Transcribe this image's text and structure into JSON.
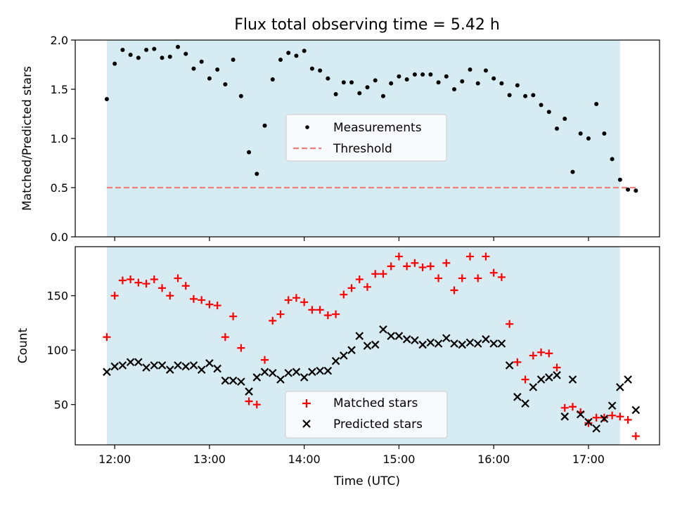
{
  "chart_data": [
    {
      "type": "scatter",
      "title": "Flux total observing time = 5.42 h",
      "xlabel": "",
      "ylabel": "Matched/Predicted stars",
      "ylim": [
        0.0,
        2.0
      ],
      "y_ticks": [
        0.0,
        0.5,
        1.0,
        1.5,
        2.0
      ],
      "y_tick_labels": [
        "0.0",
        "0.5",
        "1.0",
        "1.5",
        "2.0"
      ],
      "observing_window": {
        "start": "11:55",
        "end": "17:20",
        "color": "#add8e6"
      },
      "threshold": {
        "name": "Threshold",
        "value": 0.5,
        "color": "#f08080"
      },
      "legend_position": "center",
      "legend": [
        "Measurements",
        "Threshold"
      ],
      "series": [
        {
          "name": "Measurements",
          "marker": "dot",
          "color": "#000000",
          "points": [
            [
              "11:55",
              1.4
            ],
            [
              "12:00",
              1.76
            ],
            [
              "12:05",
              1.9
            ],
            [
              "12:10",
              1.85
            ],
            [
              "12:15",
              1.82
            ],
            [
              "12:20",
              1.9
            ],
            [
              "12:25",
              1.91
            ],
            [
              "12:30",
              1.82
            ],
            [
              "12:35",
              1.83
            ],
            [
              "12:40",
              1.93
            ],
            [
              "12:45",
              1.86
            ],
            [
              "12:50",
              1.71
            ],
            [
              "12:55",
              1.78
            ],
            [
              "13:00",
              1.61
            ],
            [
              "13:05",
              1.7
            ],
            [
              "13:10",
              1.55
            ],
            [
              "13:15",
              1.8
            ],
            [
              "13:20",
              1.43
            ],
            [
              "13:25",
              0.86
            ],
            [
              "13:30",
              0.64
            ],
            [
              "13:35",
              1.13
            ],
            [
              "13:40",
              1.6
            ],
            [
              "13:45",
              1.8
            ],
            [
              "13:50",
              1.87
            ],
            [
              "13:55",
              1.84
            ],
            [
              "14:00",
              1.89
            ],
            [
              "14:05",
              1.71
            ],
            [
              "14:10",
              1.69
            ],
            [
              "14:15",
              1.61
            ],
            [
              "14:20",
              1.45
            ],
            [
              "14:25",
              1.57
            ],
            [
              "14:30",
              1.57
            ],
            [
              "14:35",
              1.46
            ],
            [
              "14:40",
              1.52
            ],
            [
              "14:45",
              1.59
            ],
            [
              "14:50",
              1.43
            ],
            [
              "14:55",
              1.56
            ],
            [
              "15:00",
              1.63
            ],
            [
              "15:05",
              1.6
            ],
            [
              "15:10",
              1.65
            ],
            [
              "15:15",
              1.65
            ],
            [
              "15:20",
              1.65
            ],
            [
              "15:25",
              1.57
            ],
            [
              "15:30",
              1.63
            ],
            [
              "15:35",
              1.5
            ],
            [
              "15:40",
              1.58
            ],
            [
              "15:45",
              1.7
            ],
            [
              "15:50",
              1.56
            ],
            [
              "15:55",
              1.69
            ],
            [
              "16:00",
              1.61
            ],
            [
              "16:05",
              1.56
            ],
            [
              "16:10",
              1.44
            ],
            [
              "16:15",
              1.54
            ],
            [
              "16:20",
              1.43
            ],
            [
              "16:25",
              1.44
            ],
            [
              "16:30",
              1.34
            ],
            [
              "16:35",
              1.27
            ],
            [
              "16:40",
              1.1
            ],
            [
              "16:45",
              1.2
            ],
            [
              "16:50",
              0.66
            ],
            [
              "16:55",
              1.05
            ],
            [
              "17:00",
              1.0
            ],
            [
              "17:05",
              1.35
            ],
            [
              "17:10",
              1.05
            ],
            [
              "17:15",
              0.79
            ],
            [
              "17:20",
              0.58
            ],
            [
              "17:25",
              0.48
            ],
            [
              "17:30",
              0.47
            ]
          ]
        }
      ]
    },
    {
      "type": "scatter",
      "title": "",
      "xlabel": "Time (UTC)",
      "ylabel": "Count",
      "ylim": [
        13,
        195
      ],
      "y_ticks": [
        50,
        100,
        150
      ],
      "y_tick_labels": [
        "50",
        "100",
        "150"
      ],
      "xlim": [
        "11:35",
        "17:45"
      ],
      "x_ticks": [
        "12:00",
        "13:00",
        "14:00",
        "15:00",
        "16:00",
        "17:00"
      ],
      "x_tick_labels": [
        "12:00",
        "13:00",
        "14:00",
        "15:00",
        "16:00",
        "17:00"
      ],
      "observing_window": {
        "start": "11:55",
        "end": "17:20",
        "color": "#add8e6"
      },
      "legend_position": "lower center",
      "legend": [
        "Matched stars",
        "Predicted stars"
      ],
      "series": [
        {
          "name": "Matched stars",
          "marker": "plus",
          "color": "#ff0000",
          "points": [
            [
              "11:55",
              112
            ],
            [
              "12:00",
              150
            ],
            [
              "12:05",
              164
            ],
            [
              "12:10",
              165
            ],
            [
              "12:15",
              162
            ],
            [
              "12:20",
              161
            ],
            [
              "12:25",
              165
            ],
            [
              "12:30",
              157
            ],
            [
              "12:35",
              150
            ],
            [
              "12:40",
              166
            ],
            [
              "12:45",
              159
            ],
            [
              "12:50",
              147
            ],
            [
              "12:55",
              146
            ],
            [
              "13:00",
              142
            ],
            [
              "13:05",
              141
            ],
            [
              "13:10",
              112
            ],
            [
              "13:15",
              131
            ],
            [
              "13:20",
              102
            ],
            [
              "13:25",
              53
            ],
            [
              "13:30",
              50
            ],
            [
              "13:35",
              91
            ],
            [
              "13:40",
              127
            ],
            [
              "13:45",
              133
            ],
            [
              "13:50",
              146
            ],
            [
              "13:55",
              148
            ],
            [
              "14:00",
              144
            ],
            [
              "14:05",
              137
            ],
            [
              "14:10",
              137
            ],
            [
              "14:15",
              132
            ],
            [
              "14:20",
              133
            ],
            [
              "14:25",
              151
            ],
            [
              "14:30",
              157
            ],
            [
              "14:35",
              165
            ],
            [
              "14:40",
              158
            ],
            [
              "14:45",
              170
            ],
            [
              "14:50",
              170
            ],
            [
              "14:55",
              177
            ],
            [
              "15:00",
              186
            ],
            [
              "15:05",
              177
            ],
            [
              "15:10",
              180
            ],
            [
              "15:15",
              176
            ],
            [
              "15:20",
              177
            ],
            [
              "15:25",
              166
            ],
            [
              "15:30",
              180
            ],
            [
              "15:35",
              155
            ],
            [
              "15:40",
              166
            ],
            [
              "15:45",
              186
            ],
            [
              "15:50",
              166
            ],
            [
              "15:55",
              186
            ],
            [
              "16:00",
              171
            ],
            [
              "16:05",
              167
            ],
            [
              "16:10",
              124
            ],
            [
              "16:15",
              89
            ],
            [
              "16:20",
              73
            ],
            [
              "16:25",
              95
            ],
            [
              "16:30",
              98
            ],
            [
              "16:35",
              97
            ],
            [
              "16:40",
              84
            ],
            [
              "16:45",
              47
            ],
            [
              "16:50",
              48
            ],
            [
              "16:55",
              43
            ],
            [
              "17:00",
              33
            ],
            [
              "17:05",
              38
            ],
            [
              "17:10",
              38
            ],
            [
              "17:15",
              40
            ],
            [
              "17:20",
              39
            ],
            [
              "17:25",
              36
            ],
            [
              "17:30",
              21
            ]
          ]
        },
        {
          "name": "Predicted stars",
          "marker": "x",
          "color": "#000000",
          "points": [
            [
              "11:55",
              80
            ],
            [
              "12:00",
              85
            ],
            [
              "12:05",
              86
            ],
            [
              "12:10",
              89
            ],
            [
              "12:15",
              89
            ],
            [
              "12:20",
              84
            ],
            [
              "12:25",
              86
            ],
            [
              "12:30",
              86
            ],
            [
              "12:35",
              82
            ],
            [
              "12:40",
              86
            ],
            [
              "12:45",
              85
            ],
            [
              "12:50",
              86
            ],
            [
              "12:55",
              82
            ],
            [
              "13:00",
              88
            ],
            [
              "13:05",
              83
            ],
            [
              "13:10",
              72
            ],
            [
              "13:15",
              72
            ],
            [
              "13:20",
              71
            ],
            [
              "13:25",
              62
            ],
            [
              "13:30",
              75
            ],
            [
              "13:35",
              80
            ],
            [
              "13:40",
              79
            ],
            [
              "13:45",
              73
            ],
            [
              "13:50",
              79
            ],
            [
              "13:55",
              80
            ],
            [
              "14:00",
              75
            ],
            [
              "14:05",
              80
            ],
            [
              "14:10",
              81
            ],
            [
              "14:15",
              81
            ],
            [
              "14:20",
              90
            ],
            [
              "14:25",
              95
            ],
            [
              "14:30",
              100
            ],
            [
              "14:35",
              113
            ],
            [
              "14:40",
              104
            ],
            [
              "14:45",
              105
            ],
            [
              "14:50",
              119
            ],
            [
              "14:55",
              113
            ],
            [
              "15:00",
              113
            ],
            [
              "15:05",
              110
            ],
            [
              "15:10",
              109
            ],
            [
              "15:15",
              105
            ],
            [
              "15:20",
              107
            ],
            [
              "15:25",
              106
            ],
            [
              "15:30",
              111
            ],
            [
              "15:35",
              106
            ],
            [
              "15:40",
              105
            ],
            [
              "15:45",
              107
            ],
            [
              "15:50",
              106
            ],
            [
              "15:55",
              110
            ],
            [
              "16:00",
              106
            ],
            [
              "16:05",
              106
            ],
            [
              "16:10",
              86
            ],
            [
              "16:15",
              57
            ],
            [
              "16:20",
              51
            ],
            [
              "16:25",
              66
            ],
            [
              "16:30",
              73
            ],
            [
              "16:35",
              75
            ],
            [
              "16:40",
              77
            ],
            [
              "16:45",
              39
            ],
            [
              "16:50",
              73
            ],
            [
              "16:55",
              41
            ],
            [
              "17:00",
              34
            ],
            [
              "17:05",
              28
            ],
            [
              "17:10",
              37
            ],
            [
              "17:15",
              49
            ],
            [
              "17:20",
              66
            ],
            [
              "17:25",
              73
            ],
            [
              "17:30",
              45
            ]
          ]
        }
      ]
    }
  ]
}
